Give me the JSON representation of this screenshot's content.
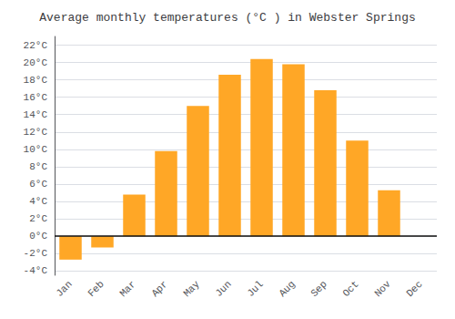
{
  "chart_data": {
    "type": "bar",
    "title": "Average monthly temperatures (°C ) in Webster Springs",
    "categories": [
      "Jan",
      "Feb",
      "Mar",
      "Apr",
      "May",
      "Jun",
      "Jul",
      "Aug",
      "Sep",
      "Oct",
      "Nov",
      "Dec"
    ],
    "values": [
      -2.7,
      -1.3,
      4.8,
      9.8,
      15.0,
      18.6,
      20.4,
      19.8,
      16.8,
      11.0,
      5.3,
      0.0
    ],
    "color": "#FFA726",
    "ylim": [
      -4.5,
      23
    ],
    "yticks": [
      {
        "value": -4,
        "label": "-4°C"
      },
      {
        "value": -2,
        "label": "-2°C"
      },
      {
        "value": 0,
        "label": "0°C"
      },
      {
        "value": 2,
        "label": "2°C"
      },
      {
        "value": 4,
        "label": "4°C"
      },
      {
        "value": 6,
        "label": "6°C"
      },
      {
        "value": 8,
        "label": "8°C"
      },
      {
        "value": 10,
        "label": "10°C"
      },
      {
        "value": 12,
        "label": "12°C"
      },
      {
        "value": 14,
        "label": "14°C"
      },
      {
        "value": 16,
        "label": "16°C"
      },
      {
        "value": 18,
        "label": "18°C"
      },
      {
        "value": 20,
        "label": "20°C"
      },
      {
        "value": 22,
        "label": "22°C"
      }
    ],
    "grid": true
  }
}
